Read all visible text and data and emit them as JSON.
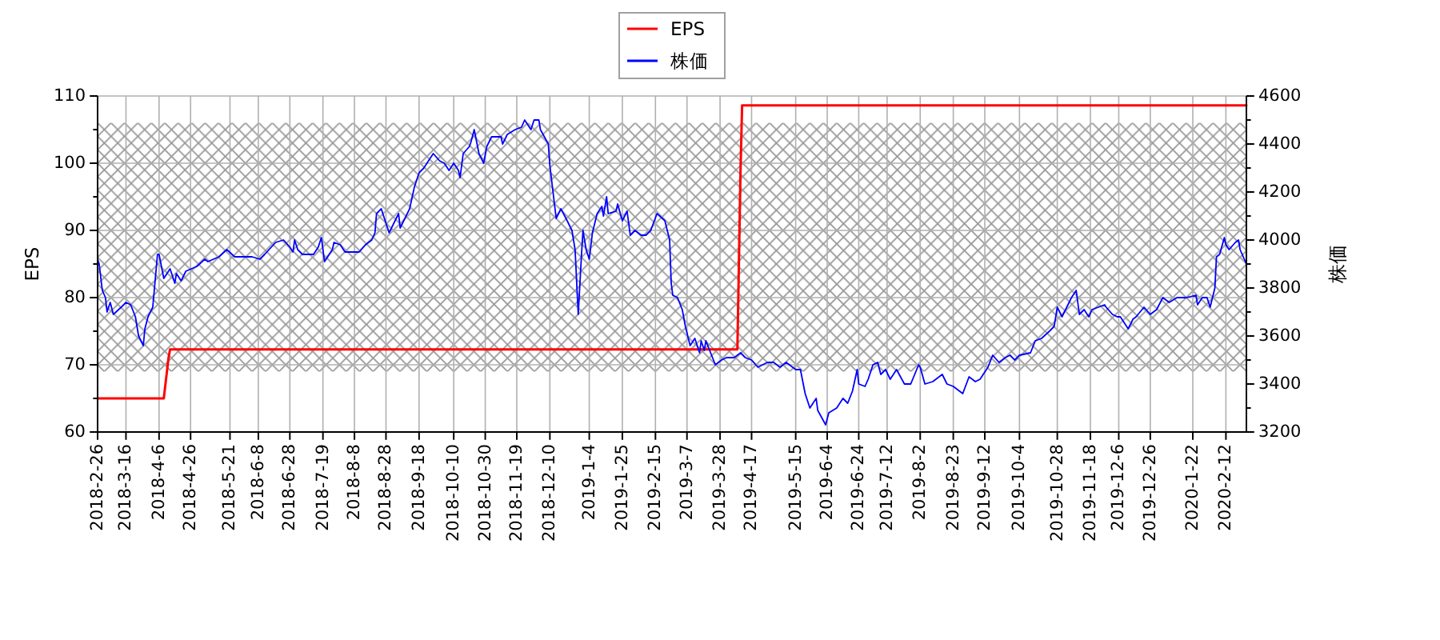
{
  "chart_data": {
    "type": "line",
    "ylabel": "EPS",
    "y2label": "株価",
    "xlim": [
      "2018-02-26",
      "2020-02-25"
    ],
    "xticks": [
      {
        "value": "2018-02-26",
        "label": "2018-2-26"
      },
      {
        "value": "2018-03-16",
        "label": "2018-3-16"
      },
      {
        "value": "2018-04-06",
        "label": "2018-4-6"
      },
      {
        "value": "2018-04-26",
        "label": "2018-4-26"
      },
      {
        "value": "2018-05-21",
        "label": "2018-5-21"
      },
      {
        "value": "2018-06-08",
        "label": "2018-6-8"
      },
      {
        "value": "2018-06-28",
        "label": "2018-6-28"
      },
      {
        "value": "2018-07-19",
        "label": "2018-7-19"
      },
      {
        "value": "2018-08-08",
        "label": "2018-8-8"
      },
      {
        "value": "2018-08-28",
        "label": "2018-8-28"
      },
      {
        "value": "2018-09-18",
        "label": "2018-9-18"
      },
      {
        "value": "2018-10-10",
        "label": "2018-10-10"
      },
      {
        "value": "2018-10-30",
        "label": "2018-10-30"
      },
      {
        "value": "2018-11-19",
        "label": "2018-11-19"
      },
      {
        "value": "2018-12-10",
        "label": "2018-12-10"
      },
      {
        "value": "2019-01-04",
        "label": "2019-1-4"
      },
      {
        "value": "2019-01-25",
        "label": "2019-1-25"
      },
      {
        "value": "2019-02-15",
        "label": "2019-2-15"
      },
      {
        "value": "2019-03-07",
        "label": "2019-3-7"
      },
      {
        "value": "2019-03-28",
        "label": "2019-3-28"
      },
      {
        "value": "2019-04-17",
        "label": "2019-4-17"
      },
      {
        "value": "2019-05-15",
        "label": "2019-5-15"
      },
      {
        "value": "2019-06-04",
        "label": "2019-6-4"
      },
      {
        "value": "2019-06-24",
        "label": "2019-6-24"
      },
      {
        "value": "2019-07-12",
        "label": "2019-7-12"
      },
      {
        "value": "2019-08-02",
        "label": "2019-8-2"
      },
      {
        "value": "2019-08-23",
        "label": "2019-8-23"
      },
      {
        "value": "2019-09-12",
        "label": "2019-9-12"
      },
      {
        "value": "2019-10-04",
        "label": "2019-10-4"
      },
      {
        "value": "2019-10-28",
        "label": "2019-10-28"
      },
      {
        "value": "2019-11-18",
        "label": "2019-11-18"
      },
      {
        "value": "2019-12-06",
        "label": "2019-12-6"
      },
      {
        "value": "2019-12-26",
        "label": "2019-12-26"
      },
      {
        "value": "2020-01-22",
        "label": "2020-1-22"
      },
      {
        "value": "2020-02-12",
        "label": "2020-2-12"
      }
    ],
    "ylim": [
      60,
      110
    ],
    "yticks": [
      60,
      {
        "value": 65,
        "label": null
      },
      70,
      {
        "value": 75,
        "label": null
      },
      80,
      {
        "value": 85,
        "label": null
      },
      90,
      {
        "value": 95,
        "label": null
      },
      100,
      {
        "value": 105,
        "label": null
      },
      110
    ],
    "y2lim": [
      3200,
      4600
    ],
    "y2ticks": [
      3200,
      {
        "value": 3300,
        "label": null
      },
      3400,
      {
        "value": 3500,
        "label": null
      },
      3600,
      {
        "value": 3700,
        "label": null
      },
      3800,
      {
        "value": 3900,
        "label": null
      },
      4000,
      {
        "value": 4100,
        "label": null
      },
      4200,
      {
        "value": 4300,
        "label": null
      },
      4400,
      {
        "value": 4500,
        "label": null
      },
      4600
    ],
    "grid": true,
    "legend": "top",
    "bands": [
      {
        "axis": "y",
        "from": 69,
        "to": 106,
        "color": "#999999"
      }
    ],
    "series": [
      {
        "name": "EPS",
        "color": "#ff0000",
        "x": [
          "2018-02-26",
          "2018-04-09",
          "2018-04-10",
          "2018-04-12",
          "2018-04-13",
          "2019-04-08",
          "2019-04-10",
          "2019-04-11",
          "2020-02-25"
        ],
        "values": [
          65,
          65,
          67,
          71,
          72.3,
          72.3,
          99,
          108.6,
          108.6
        ]
      },
      {
        "name": "株価",
        "color": "#0000ff",
        "axis": "y2",
        "x": [
          "2018-02-26",
          "2018-02-27",
          "2018-03-01",
          "2018-03-03",
          "2018-03-04",
          "2018-03-06",
          "2018-03-08",
          "2018-03-13",
          "2018-03-16",
          "2018-03-19",
          "2018-03-22",
          "2018-03-24",
          "2018-03-27",
          "2018-03-28",
          "2018-03-30",
          "2018-04-02",
          "2018-04-05",
          "2018-04-06",
          "2018-04-09",
          "2018-04-12",
          "2018-04-13",
          "2018-04-16",
          "2018-04-17",
          "2018-04-20",
          "2018-04-23",
          "2018-04-30",
          "2018-05-05",
          "2018-05-07",
          "2018-05-14",
          "2018-05-19",
          "2018-05-24",
          "2018-05-29",
          "2018-06-04",
          "2018-06-09",
          "2018-06-12",
          "2018-06-19",
          "2018-06-24",
          "2018-06-28",
          "2018-06-30",
          "2018-07-01",
          "2018-07-03",
          "2018-07-06",
          "2018-07-13",
          "2018-07-16",
          "2018-07-18",
          "2018-07-20",
          "2018-07-25",
          "2018-07-26",
          "2018-07-30",
          "2018-08-02",
          "2018-08-11",
          "2018-08-15",
          "2018-08-19",
          "2018-08-21",
          "2018-08-22",
          "2018-08-25",
          "2018-08-28",
          "2018-08-30",
          "2018-09-02",
          "2018-09-05",
          "2018-09-06",
          "2018-09-09",
          "2018-09-12",
          "2018-09-15",
          "2018-09-18",
          "2018-09-21",
          "2018-09-24",
          "2018-09-27",
          "2018-10-01",
          "2018-10-04",
          "2018-10-07",
          "2018-10-10",
          "2018-10-13",
          "2018-10-14",
          "2018-10-16",
          "2018-10-20",
          "2018-10-21",
          "2018-10-23",
          "2018-10-26",
          "2018-10-29",
          "2018-10-31",
          "2018-11-03",
          "2018-11-09",
          "2018-11-10",
          "2018-11-13",
          "2018-11-18",
          "2018-11-22",
          "2018-11-24",
          "2018-11-28",
          "2018-11-30",
          "2018-12-03",
          "2018-12-04",
          "2018-12-09",
          "2018-12-10",
          "2018-12-12",
          "2018-12-14",
          "2018-12-17",
          "2018-12-21",
          "2018-12-24",
          "2018-12-26",
          "2018-12-28",
          "2018-12-30",
          "2018-12-31",
          "2019-01-02",
          "2019-01-04",
          "2019-01-06",
          "2019-01-09",
          "2019-01-12",
          "2019-01-13",
          "2019-01-15",
          "2019-01-16",
          "2019-01-21",
          "2019-01-22",
          "2019-01-25",
          "2019-01-28",
          "2019-01-30",
          "2019-02-02",
          "2019-02-06",
          "2019-02-09",
          "2019-02-12",
          "2019-02-16",
          "2019-02-21",
          "2019-02-24",
          "2019-02-25",
          "2019-02-26",
          "2019-03-01",
          "2019-03-04",
          "2019-03-06",
          "2019-03-09",
          "2019-03-12",
          "2019-03-15",
          "2019-03-16",
          "2019-03-18",
          "2019-03-19",
          "2019-03-22",
          "2019-03-25",
          "2019-03-29",
          "2019-04-01",
          "2019-04-06",
          "2019-04-10",
          "2019-04-13",
          "2019-04-17",
          "2019-04-21",
          "2019-04-27",
          "2019-05-01",
          "2019-05-05",
          "2019-05-09",
          "2019-05-15",
          "2019-05-18",
          "2019-05-21",
          "2019-05-24",
          "2019-05-28",
          "2019-05-29",
          "2019-06-03",
          "2019-06-05",
          "2019-06-10",
          "2019-06-14",
          "2019-06-17",
          "2019-06-20",
          "2019-06-23",
          "2019-06-24",
          "2019-06-28",
          "2019-06-30",
          "2019-07-03",
          "2019-07-06",
          "2019-07-08",
          "2019-07-11",
          "2019-07-14",
          "2019-07-18",
          "2019-07-23",
          "2019-07-27",
          "2019-08-01",
          "2019-08-02",
          "2019-08-05",
          "2019-08-10",
          "2019-08-16",
          "2019-08-19",
          "2019-08-23",
          "2019-08-29",
          "2019-09-02",
          "2019-09-06",
          "2019-09-09",
          "2019-09-14",
          "2019-09-17",
          "2019-09-21",
          "2019-09-25",
          "2019-09-28",
          "2019-10-01",
          "2019-10-04",
          "2019-10-11",
          "2019-10-14",
          "2019-10-18",
          "2019-10-23",
          "2019-10-26",
          "2019-10-28",
          "2019-10-31",
          "2019-11-03",
          "2019-11-06",
          "2019-11-09",
          "2019-11-11",
          "2019-11-14",
          "2019-11-17",
          "2019-11-19",
          "2019-11-23",
          "2019-11-27",
          "2019-11-28",
          "2019-12-02",
          "2019-12-05",
          "2019-12-07",
          "2019-12-12",
          "2019-12-15",
          "2019-12-17",
          "2019-12-22",
          "2019-12-26",
          "2019-12-30",
          "2020-01-03",
          "2020-01-07",
          "2020-01-12",
          "2020-01-18",
          "2020-01-24",
          "2020-01-25",
          "2020-01-28",
          "2020-01-31",
          "2020-02-02",
          "2020-02-05",
          "2020-02-06",
          "2020-02-08",
          "2020-02-11",
          "2020-02-12",
          "2020-02-14",
          "2020-02-18",
          "2020-02-20",
          "2020-02-21",
          "2020-02-25"
        ],
        "values": [
          3920,
          3900,
          3790,
          3760,
          3700,
          3740,
          3690,
          3720,
          3740,
          3730,
          3680,
          3600,
          3560,
          3630,
          3680,
          3720,
          3940,
          3940,
          3840,
          3870,
          3880,
          3820,
          3860,
          3830,
          3870,
          3890,
          3920,
          3910,
          3930,
          3960,
          3930,
          3930,
          3930,
          3920,
          3940,
          3990,
          4000,
          3970,
          3950,
          4000,
          3960,
          3940,
          3940,
          3970,
          4010,
          3910,
          3960,
          3990,
          3980,
          3950,
          3950,
          3980,
          4000,
          4030,
          4110,
          4130,
          4070,
          4030,
          4070,
          4110,
          4050,
          4090,
          4130,
          4220,
          4280,
          4300,
          4330,
          4360,
          4330,
          4320,
          4290,
          4320,
          4290,
          4260,
          4360,
          4390,
          4410,
          4460,
          4360,
          4320,
          4390,
          4430,
          4430,
          4400,
          4440,
          4460,
          4470,
          4500,
          4460,
          4500,
          4500,
          4460,
          4400,
          4310,
          4200,
          4090,
          4130,
          4080,
          4040,
          3960,
          3690,
          3930,
          4040,
          3960,
          3920,
          4030,
          4110,
          4140,
          4100,
          4180,
          4110,
          4120,
          4150,
          4080,
          4120,
          4020,
          4040,
          4020,
          4020,
          4040,
          4110,
          4080,
          4000,
          3820,
          3770,
          3760,
          3710,
          3640,
          3560,
          3590,
          3530,
          3580,
          3540,
          3580,
          3530,
          3480,
          3500,
          3510,
          3510,
          3530,
          3510,
          3500,
          3470,
          3490,
          3490,
          3470,
          3490,
          3460,
          3460,
          3360,
          3300,
          3340,
          3290,
          3230,
          3280,
          3300,
          3340,
          3320,
          3370,
          3460,
          3400,
          3390,
          3420,
          3480,
          3490,
          3440,
          3460,
          3420,
          3460,
          3400,
          3400,
          3480,
          3470,
          3400,
          3410,
          3440,
          3400,
          3390,
          3360,
          3430,
          3410,
          3420,
          3470,
          3520,
          3490,
          3510,
          3520,
          3500,
          3520,
          3530,
          3580,
          3590,
          3620,
          3640,
          3720,
          3680,
          3720,
          3760,
          3790,
          3690,
          3710,
          3680,
          3710,
          3720,
          3730,
          3720,
          3690,
          3680,
          3680,
          3630,
          3670,
          3680,
          3720,
          3690,
          3710,
          3760,
          3740,
          3760,
          3760,
          3770,
          3730,
          3760,
          3760,
          3720,
          3800,
          3930,
          3940,
          4010,
          3980,
          3960,
          3990,
          4000,
          3960,
          3900
        ]
      }
    ]
  }
}
